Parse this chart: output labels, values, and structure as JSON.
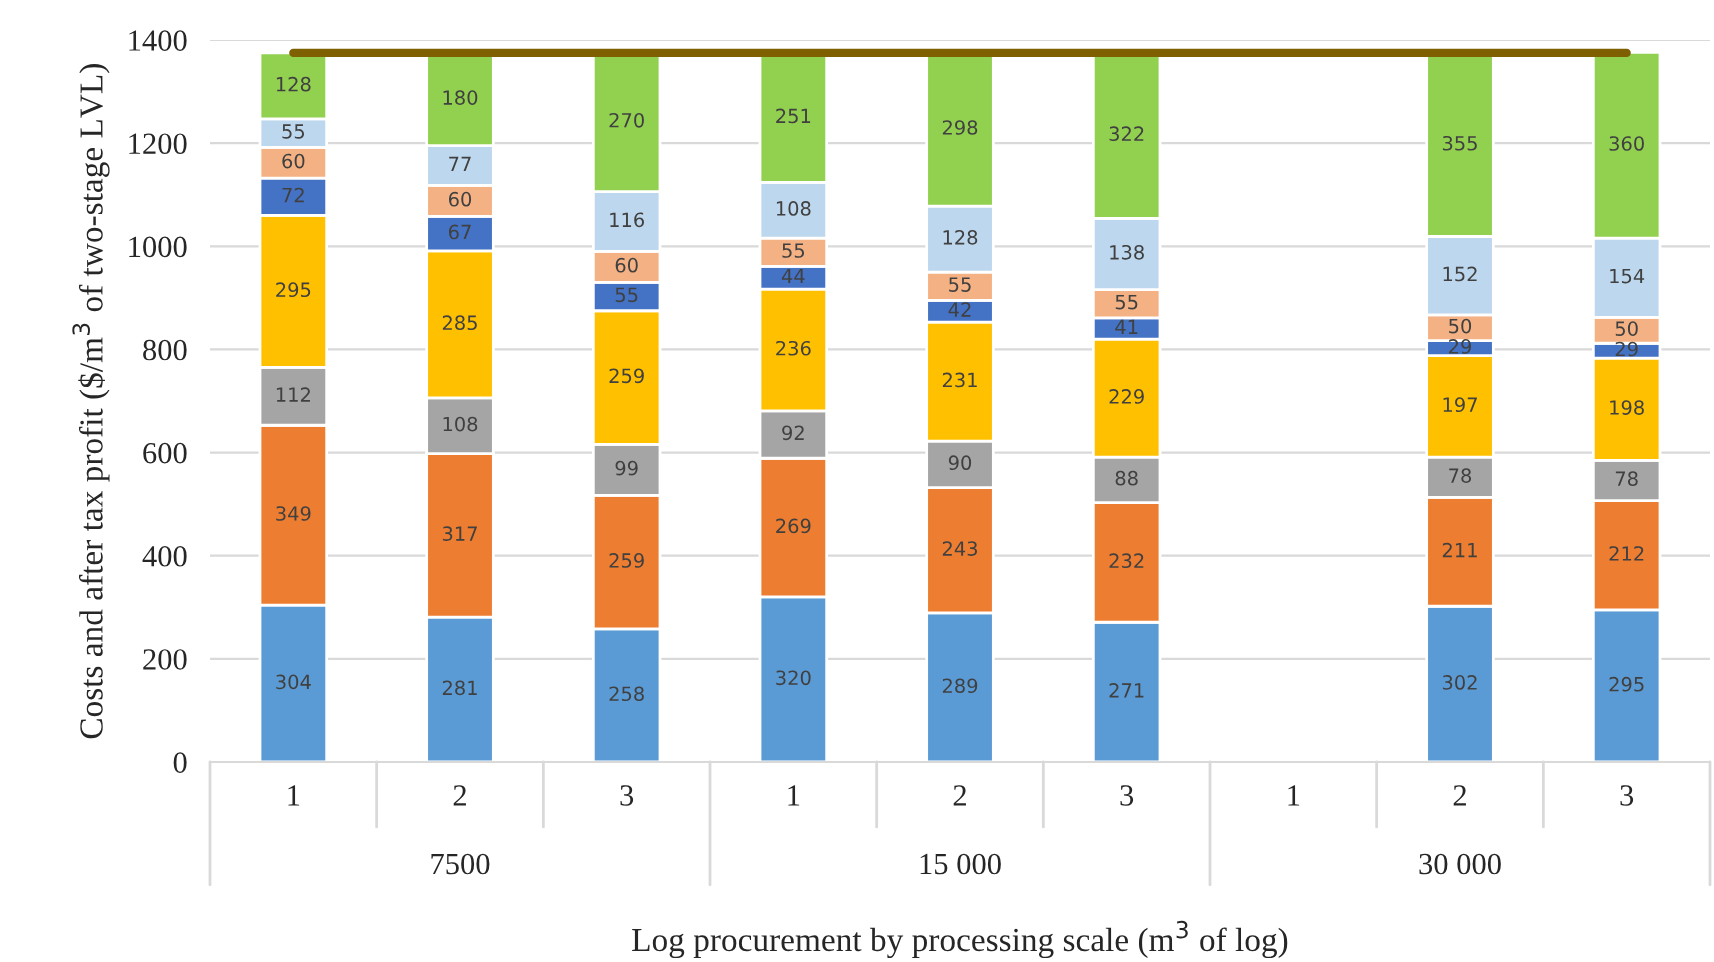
{
  "chart_data": {
    "type": "bar",
    "stacked": true,
    "data_labels": true,
    "ylabel": "Costs and after tax profit ($/m$^{3}$ of two-stage LVL)",
    "xlabel": "Log procurement by processing scale (m$^{3}$ of log)",
    "categories": [
      "1",
      "2",
      "3",
      "1",
      "2",
      "3",
      "1",
      "2",
      "3"
    ],
    "annotations": [
      "7500",
      "15 000",
      "30 000"
    ],
    "ylim": [
      0,
      1400
    ],
    "yticks": [
      0,
      200,
      400,
      600,
      800,
      1000,
      1200,
      1400
    ],
    "grid": "y",
    "legend": false,
    "series": [
      {
        "color": "#5b9bd5",
        "values": [
          304,
          281,
          258,
          320,
          289,
          271,
          null,
          302,
          295
        ]
      },
      {
        "color": "#ed7d31",
        "values": [
          349,
          317,
          259,
          269,
          243,
          232,
          null,
          211,
          212
        ]
      },
      {
        "color": "#a5a5a5",
        "values": [
          112,
          108,
          99,
          92,
          90,
          88,
          null,
          78,
          78
        ]
      },
      {
        "color": "#ffc000",
        "values": [
          295,
          285,
          259,
          236,
          231,
          229,
          null,
          197,
          198
        ]
      },
      {
        "color": "#4472c4",
        "values": [
          72,
          67,
          55,
          44,
          42,
          41,
          null,
          29,
          29
        ]
      },
      {
        "color": "#f4b183",
        "values": [
          60,
          60,
          60,
          55,
          55,
          55,
          null,
          50,
          50
        ]
      },
      {
        "color": "#bdd7ee",
        "values": [
          55,
          77,
          116,
          108,
          128,
          138,
          null,
          152,
          154
        ]
      },
      {
        "color": "#92d050",
        "values": [
          128,
          180,
          270,
          251,
          298,
          322,
          null,
          355,
          360
        ]
      },
      {
        "type": "line",
        "color": "#7f6000",
        "values": [
          1375,
          1375,
          1375,
          1375,
          1375,
          1375,
          1375,
          1375,
          1375
        ],
        "value_labels": [
          null,
          null,
          null,
          null,
          null,
          null,
          null,
          null,
          null
        ]
      }
    ]
  }
}
